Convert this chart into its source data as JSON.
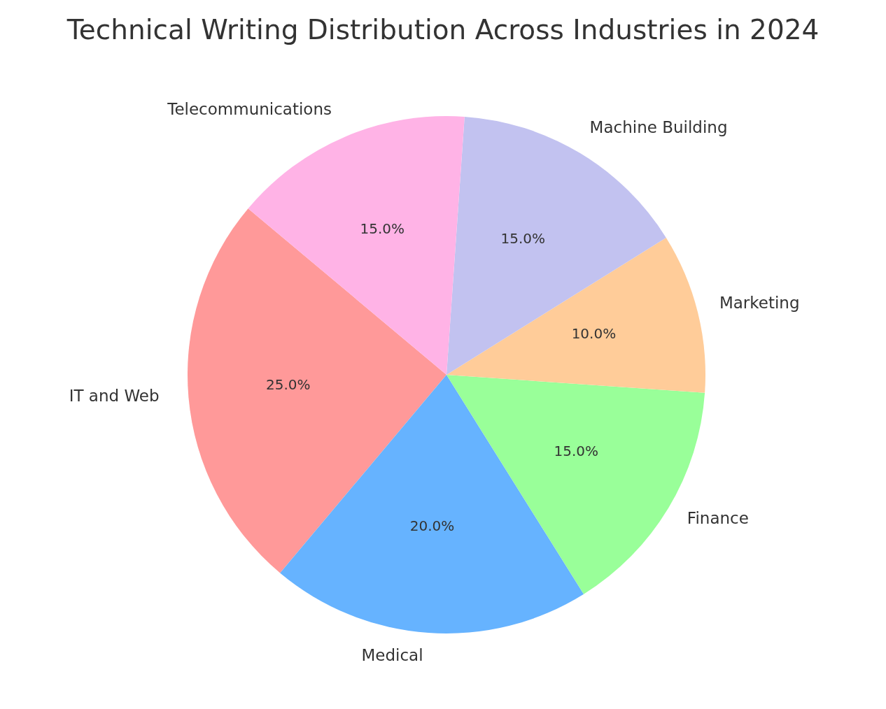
{
  "chart_data": {
    "type": "pie",
    "title": "Technical Writing Distribution Across Industries in 2024",
    "categories": [
      "IT and Web",
      "Medical",
      "Finance",
      "Marketing",
      "Machine Building",
      "Telecommunications"
    ],
    "values": [
      25,
      20,
      15,
      10,
      15,
      15
    ],
    "colors": [
      "#ff9999",
      "#66b3ff",
      "#99ff99",
      "#ffcc99",
      "#c2c2f0",
      "#ffb3e6"
    ],
    "value_labels": [
      "25.0%",
      "20.0%",
      "15.0%",
      "10.0%",
      "15.0%",
      "15.0%"
    ],
    "legend": false
  }
}
